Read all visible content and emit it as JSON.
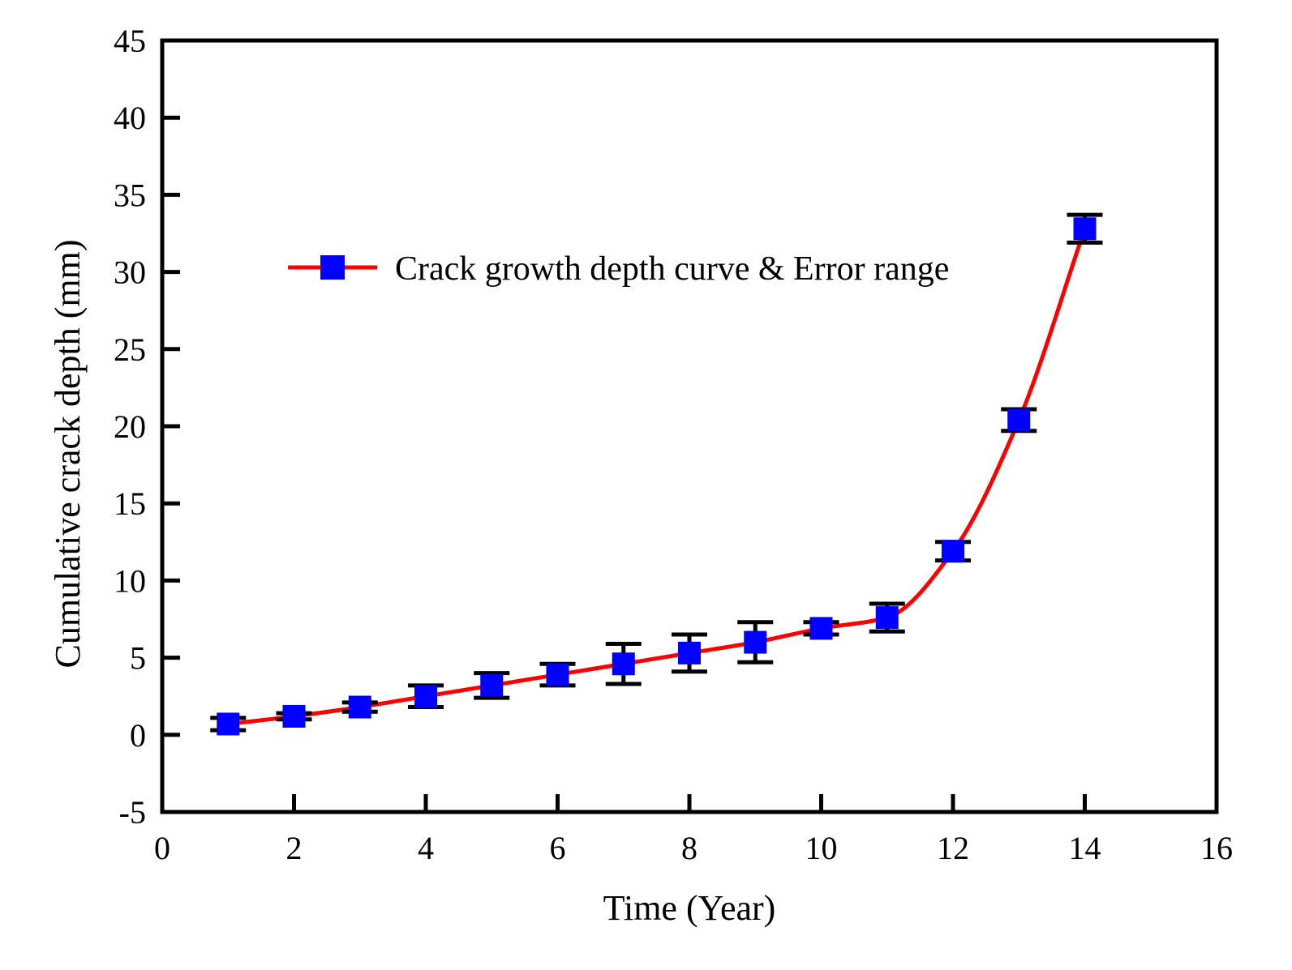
{
  "chart_data": {
    "type": "line",
    "title": "",
    "xlabel": "Time (Year)",
    "ylabel": "Cumulative crack depth (mm)",
    "xlim": [
      0,
      16
    ],
    "ylim": [
      -5,
      45
    ],
    "xticks": [
      0,
      2,
      4,
      6,
      8,
      10,
      12,
      14,
      16
    ],
    "yticks": [
      -5,
      0,
      5,
      10,
      15,
      20,
      25,
      30,
      35,
      40,
      45
    ],
    "xtick_labels": [
      "0",
      "2",
      "4",
      "6",
      "8",
      "10",
      "12",
      "14",
      "16"
    ],
    "ytick_labels": [
      "-5",
      "0",
      "5",
      "10",
      "15",
      "20",
      "25",
      "30",
      "35",
      "40",
      "45"
    ],
    "grid": false,
    "legend_position": "upper-center",
    "series": [
      {
        "name": "Crack growth depth curve & Error range",
        "line_color": "#ff0000",
        "marker_color": "#0000ff",
        "marker": "square",
        "x": [
          1,
          2,
          3,
          4,
          5,
          6,
          7,
          8,
          9,
          10,
          11,
          12,
          13,
          14
        ],
        "y": [
          0.7,
          1.2,
          1.8,
          2.5,
          3.2,
          3.9,
          4.6,
          5.3,
          6.0,
          6.9,
          7.6,
          11.9,
          20.4,
          32.8
        ],
        "error": [
          0.4,
          0.2,
          0.3,
          0.7,
          0.8,
          0.7,
          1.3,
          1.2,
          1.3,
          0.4,
          0.9,
          0.6,
          0.7,
          0.9
        ]
      }
    ]
  }
}
